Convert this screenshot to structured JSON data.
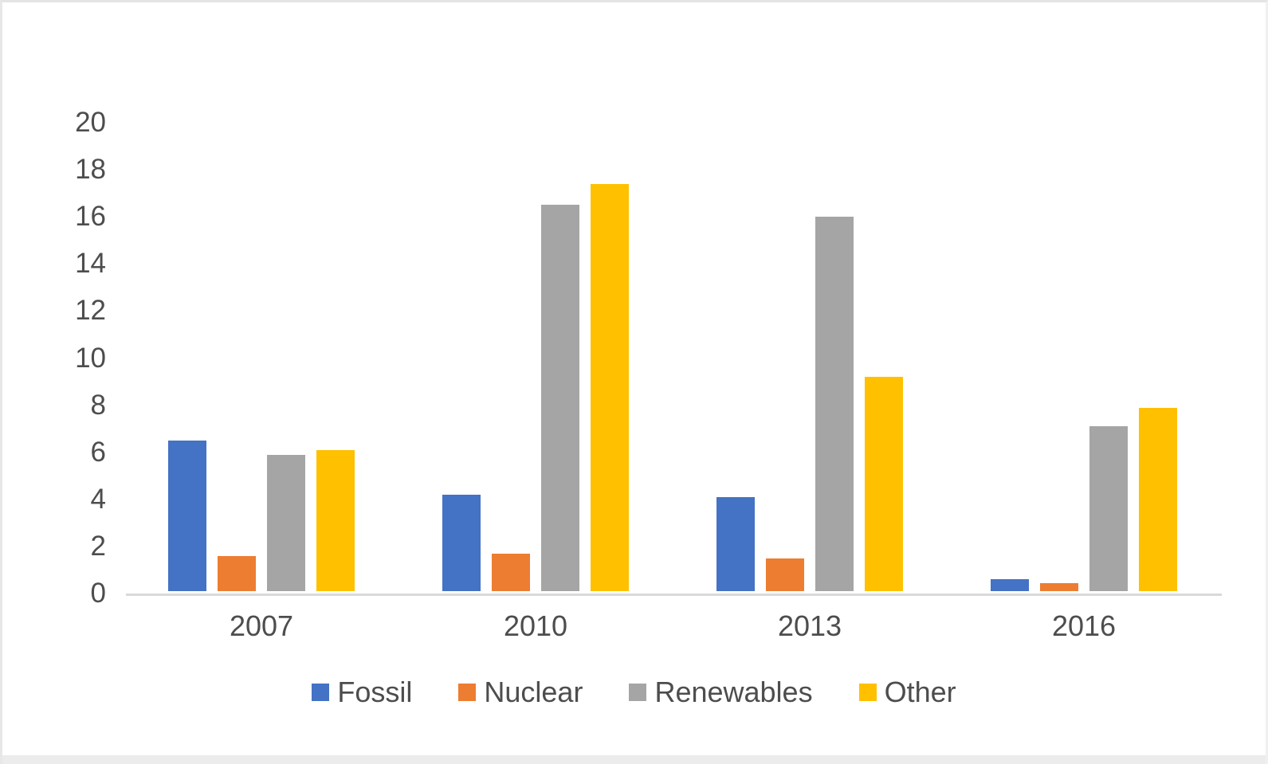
{
  "window": {
    "background": "#ffffff",
    "frame_border_color": "#e4e4e4",
    "bottom_strip_color": "#ececec"
  },
  "chart_data": {
    "type": "bar",
    "title": "",
    "xlabel": "",
    "ylabel": "",
    "categories": [
      "2007",
      "2010",
      "2013",
      "2016"
    ],
    "series": [
      {
        "name": "Fossil",
        "color": "#4472C4",
        "values": [
          6.4,
          4.1,
          4.0,
          0.5
        ]
      },
      {
        "name": "Nuclear",
        "color": "#ED7D31",
        "values": [
          1.5,
          1.6,
          1.4,
          0.35
        ]
      },
      {
        "name": "Renewables",
        "color": "#A5A5A5",
        "values": [
          5.8,
          16.4,
          15.9,
          7.0
        ]
      },
      {
        "name": "Other",
        "color": "#FFC000",
        "values": [
          6.0,
          17.3,
          9.1,
          7.8
        ]
      }
    ],
    "y_axis": {
      "min": 0,
      "max": 20,
      "tick_step": 2,
      "tick_labels": [
        "0",
        "2",
        "4",
        "6",
        "8",
        "10",
        "12",
        "14",
        "16",
        "18",
        "20"
      ]
    },
    "grid": false,
    "legend": {
      "position": "bottom",
      "entries": [
        "Fossil",
        "Nuclear",
        "Renewables",
        "Other"
      ]
    },
    "axis_line_color": "#d9d9d9",
    "label_color": "#4d4d4d"
  }
}
